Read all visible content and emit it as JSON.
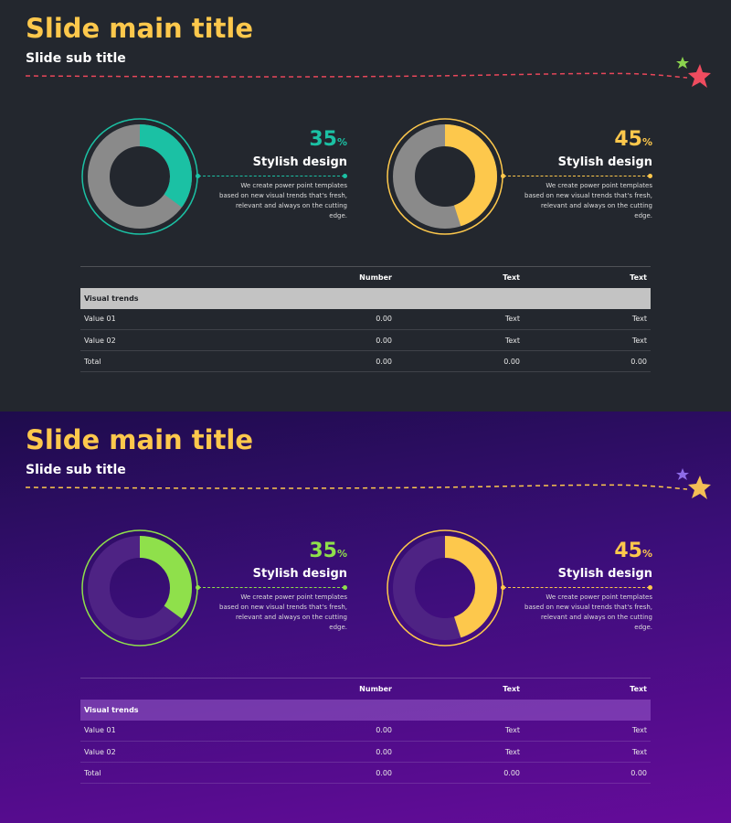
{
  "slides": [
    {
      "theme": "dark",
      "title": "Slide main title",
      "subtitle": "Slide sub title",
      "colors": {
        "background": "#23272e",
        "title": "#fdc84c",
        "line": "#e8475a",
        "big_star": "#ef4c5f",
        "small_star": "#8bd34e"
      },
      "metrics": [
        {
          "percent": "35",
          "percent_sign": "%",
          "value": 35,
          "title": "Stylish design",
          "description": "We create power point templates based on new visual trends that's fresh, relevant and always on the cutting edge.",
          "accent": "#1bc1a4",
          "track": "#8a8a8a"
        },
        {
          "percent": "45",
          "percent_sign": "%",
          "value": 45,
          "title": "Stylish design",
          "description": "We create power point templates based on new visual trends that's fresh, relevant and always on the cutting edge.",
          "accent": "#fdc84c",
          "track": "#8a8a8a"
        }
      ],
      "table": {
        "headers": [
          "",
          "Number",
          "Text",
          "Text"
        ],
        "group_label": "Visual trends",
        "rows": [
          [
            "Value 01",
            "0.00",
            "Text",
            "Text"
          ],
          [
            "Value 02",
            "0.00",
            "Text",
            "Text"
          ],
          [
            "Total",
            "0.00",
            "0.00",
            "0.00"
          ]
        ]
      }
    },
    {
      "theme": "purple",
      "title": "Slide main title",
      "subtitle": "Slide sub title",
      "colors": {
        "background": "#3c0e7a",
        "title": "#fdc84c",
        "line": "#fdc84c",
        "big_star": "#f3bf55",
        "small_star": "#8e6be8"
      },
      "metrics": [
        {
          "percent": "35",
          "percent_sign": "%",
          "value": 35,
          "title": "Stylish design",
          "description": "We create power point templates based on new visual trends that's fresh, relevant and always on the cutting edge.",
          "accent": "#8fe04b",
          "track": "#4e2384"
        },
        {
          "percent": "45",
          "percent_sign": "%",
          "value": 45,
          "title": "Stylish design",
          "description": "We create power point templates based on new visual trends that's fresh, relevant and always on the cutting edge.",
          "accent": "#fdc84c",
          "track": "#4e2384"
        }
      ],
      "table": {
        "headers": [
          "",
          "Number",
          "Text",
          "Text"
        ],
        "group_label": "Visual trends",
        "rows": [
          [
            "Value 01",
            "0.00",
            "Text",
            "Text"
          ],
          [
            "Value 02",
            "0.00",
            "Text",
            "Text"
          ],
          [
            "Total",
            "0.00",
            "0.00",
            "0.00"
          ]
        ]
      }
    }
  ]
}
